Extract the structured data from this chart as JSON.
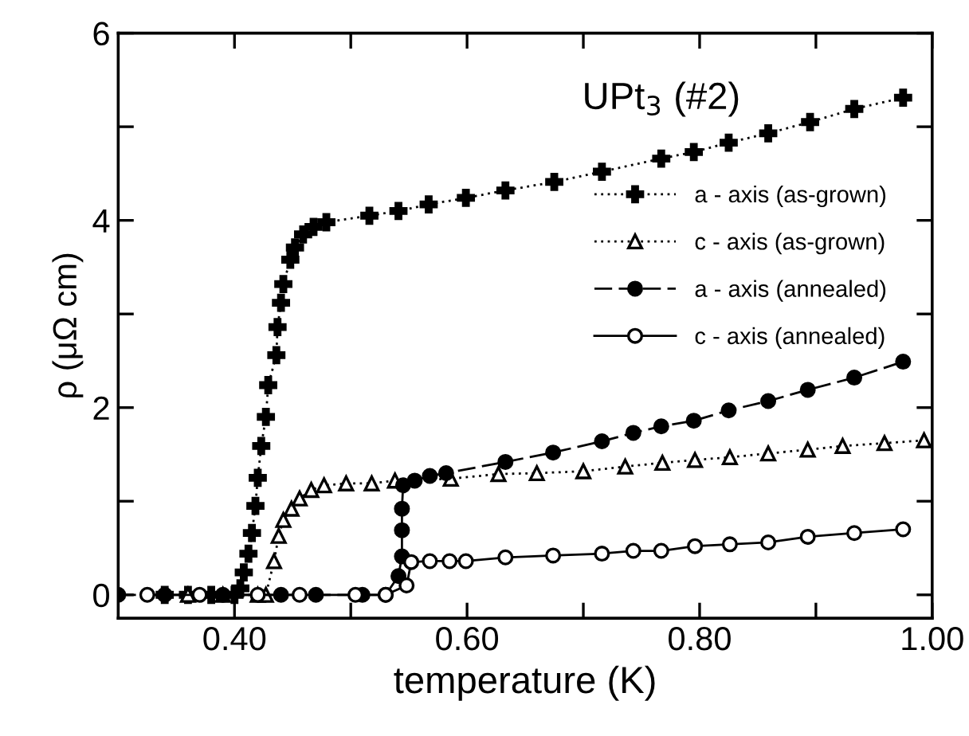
{
  "chart_data": {
    "type": "line",
    "title": "UPt$_{3}$ (#2)",
    "xlabel": "temperature (K)",
    "ylabel": "ρ (μΩ cm)",
    "xlim": [
      0.3,
      1.0
    ],
    "ylim": [
      -0.25,
      6
    ],
    "xticks": [
      {
        "value": 0.4,
        "label": "0.40"
      },
      {
        "value": 0.5,
        "label": null
      },
      {
        "value": 0.6,
        "label": "0.60"
      },
      {
        "value": 0.7,
        "label": null
      },
      {
        "value": 0.8,
        "label": "0.80"
      },
      {
        "value": 0.9,
        "label": null
      },
      {
        "value": 1.0,
        "label": "1.00"
      }
    ],
    "yticks": [
      0,
      {
        "value": 1,
        "label": null
      },
      2,
      {
        "value": 3,
        "label": null
      },
      4,
      {
        "value": 5,
        "label": null
      },
      6
    ],
    "grid": false,
    "legend": "right",
    "series": [
      {
        "name": "a - axis (as-grown)",
        "color": "#000000",
        "marker": "cross",
        "line_style": "dotted",
        "x": [
          0.34,
          0.36,
          0.38,
          0.4,
          0.405,
          0.408,
          0.412,
          0.415,
          0.418,
          0.42,
          0.423,
          0.427,
          0.429,
          0.436,
          0.437,
          0.44,
          0.442,
          0.448,
          0.452,
          0.459,
          0.468,
          0.479,
          0.516,
          0.541,
          0.567,
          0.599,
          0.633,
          0.675,
          0.716,
          0.767,
          0.795,
          0.825,
          0.859,
          0.895,
          0.933,
          0.975
        ],
        "values": [
          0,
          0,
          0,
          0,
          0.07,
          0.24,
          0.44,
          0.66,
          0.95,
          1.25,
          1.59,
          1.9,
          2.24,
          2.56,
          2.86,
          3.12,
          3.32,
          3.58,
          3.71,
          3.85,
          3.93,
          3.98,
          4.05,
          4.1,
          4.17,
          4.24,
          4.32,
          4.41,
          4.52,
          4.66,
          4.73,
          4.83,
          4.93,
          5.05,
          5.19,
          5.31
        ]
      },
      {
        "name": "c - axis (as-grown)",
        "color": "#000000",
        "marker": "triangle",
        "line_style": "dotted",
        "x": [
          0.36,
          0.39,
          0.42,
          0.427,
          0.434,
          0.438,
          0.442,
          0.449,
          0.456,
          0.466,
          0.477,
          0.496,
          0.518,
          0.538,
          0.586,
          0.627,
          0.66,
          0.7,
          0.736,
          0.768,
          0.796,
          0.826,
          0.859,
          0.893,
          0.923,
          0.959,
          0.993
        ],
        "values": [
          0,
          0,
          0,
          0,
          0.36,
          0.63,
          0.8,
          0.92,
          1.03,
          1.12,
          1.17,
          1.19,
          1.19,
          1.22,
          1.24,
          1.29,
          1.3,
          1.32,
          1.37,
          1.41,
          1.44,
          1.47,
          1.51,
          1.55,
          1.59,
          1.62,
          1.65
        ]
      },
      {
        "name": "a - axis (annealed)",
        "color": "#000000",
        "marker": "circle",
        "line_style": "dashed",
        "x": [
          0.3,
          0.34,
          0.39,
          0.44,
          0.47,
          0.51,
          0.53,
          0.541,
          0.544,
          0.544,
          0.544,
          0.545,
          0.555,
          0.568,
          0.582,
          0.633,
          0.674,
          0.716,
          0.743,
          0.767,
          0.795,
          0.825,
          0.859,
          0.893,
          0.933,
          0.975
        ],
        "values": [
          0,
          0,
          0,
          0,
          0,
          0,
          0,
          0.2,
          0.41,
          0.69,
          0.92,
          1.17,
          1.22,
          1.27,
          1.3,
          1.42,
          1.52,
          1.64,
          1.73,
          1.8,
          1.86,
          1.97,
          2.07,
          2.19,
          2.32,
          2.49
        ]
      },
      {
        "name": "c - axis (annealed)",
        "color": "#000000",
        "marker": "circle",
        "line_style": "solid",
        "x": [
          0.325,
          0.37,
          0.42,
          0.456,
          0.504,
          0.53,
          0.548,
          0.552,
          0.568,
          0.585,
          0.599,
          0.633,
          0.674,
          0.716,
          0.743,
          0.767,
          0.796,
          0.826,
          0.859,
          0.893,
          0.933,
          0.975
        ],
        "values": [
          0,
          0,
          0,
          0,
          0,
          0,
          0.1,
          0.35,
          0.36,
          0.36,
          0.36,
          0.4,
          0.42,
          0.44,
          0.47,
          0.47,
          0.52,
          0.54,
          0.56,
          0.62,
          0.66,
          0.7
        ]
      }
    ]
  }
}
